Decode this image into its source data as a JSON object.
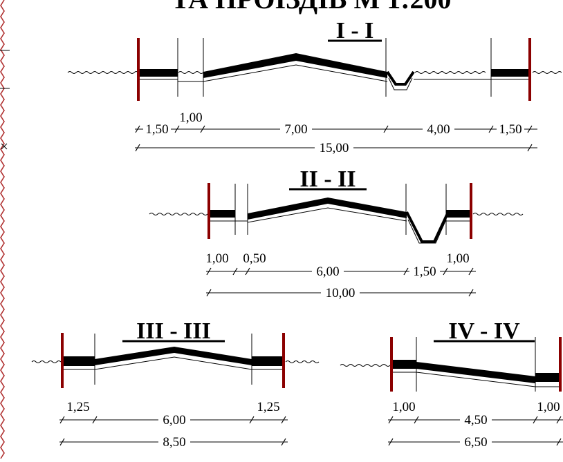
{
  "heading": "ТА ПРОЇЗДІВ М 1:200",
  "sections": [
    {
      "title": "I - I",
      "segments": [
        "1,50",
        "7,00",
        "4,00",
        "1,50"
      ],
      "small_label": "1,00",
      "total": "15,00"
    },
    {
      "title": "II - II",
      "segments": [
        "6,00",
        "1,50"
      ],
      "small_labels": [
        "1,00",
        "0,50",
        "1,00"
      ],
      "total": "10,00"
    },
    {
      "title": "III - III",
      "segments": [
        "6,00"
      ],
      "small_labels": [
        "1,25",
        "1,25"
      ],
      "total": "8,50"
    },
    {
      "title": "IV - IV",
      "segments": [
        "4,50"
      ],
      "small_labels": [
        "1,00",
        "1,00"
      ],
      "total": "6,50"
    }
  ],
  "colors": {
    "boundary_line": "#8b0000",
    "road_fill": "#000000",
    "frame_zigzag": "#b03030"
  }
}
